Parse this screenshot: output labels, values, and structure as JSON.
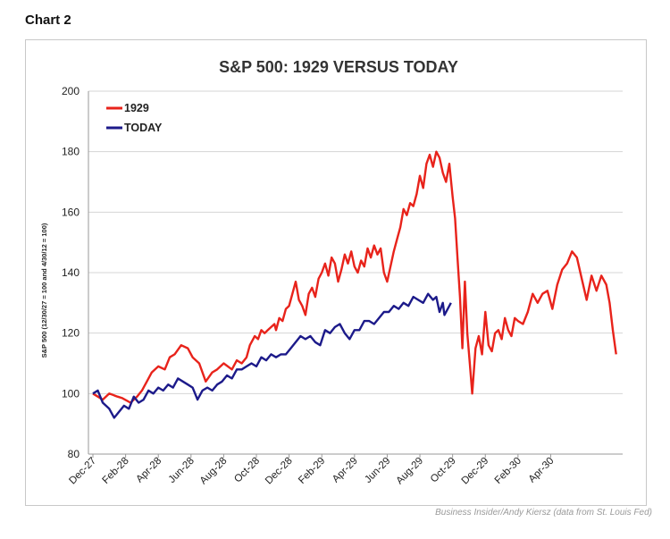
{
  "header": {
    "label": "Chart 2"
  },
  "source": "Business Insider/Andy Kiersz (data from St. Louis Fed)",
  "chart_data": {
    "type": "line",
    "title": "S&P 500: 1929 VERSUS TODAY",
    "ylabel": "S&P 500 (12/30/27 = 100 and 4/30/12 = 100)",
    "xlabel": "",
    "ylim": [
      80,
      200
    ],
    "yticks": [
      80,
      100,
      120,
      140,
      160,
      180,
      200
    ],
    "xticks": [
      "Dec-27",
      "Feb-28",
      "Apr-28",
      "Jun-28",
      "Aug-28",
      "Oct-28",
      "Dec-28",
      "Feb-29",
      "Apr-29",
      "Jun-29",
      "Aug-29",
      "Oct-29",
      "Dec-29",
      "Feb-30",
      "Apr-30"
    ],
    "grid": "horizontal",
    "legend": "top-left",
    "series": [
      {
        "name": "1929",
        "color": "#e8231b",
        "x": [
          0,
          0.3,
          0.6,
          1.0,
          1.5,
          1.8,
          2.3,
          2.7,
          3.0,
          3.3,
          3.6,
          4.0,
          4.4,
          4.7,
          5.0,
          5.4,
          5.8,
          6.1,
          6.5,
          6.9,
          7.3,
          7.6,
          8.0,
          8.5,
          8.8,
          9.1,
          9.4,
          9.6,
          9.9,
          10.1,
          10.3,
          10.5,
          10.7,
          10.9,
          11.1,
          11.2,
          11.4,
          11.6,
          11.8,
          12.0,
          12.2,
          12.4,
          12.6,
          12.8,
          13.0,
          13.2,
          13.4,
          13.6,
          13.8,
          14.0,
          14.2,
          14.4,
          14.6,
          14.8,
          15.0,
          15.2,
          15.4,
          15.6,
          15.8,
          16.0,
          16.2,
          16.4,
          16.6,
          16.8,
          17.0,
          17.2,
          17.4,
          17.6,
          17.8,
          18.0,
          18.2,
          18.4,
          18.6,
          18.8,
          19.0,
          19.2,
          19.4,
          19.6,
          19.8,
          20.0,
          20.2,
          20.4,
          20.6,
          20.8,
          21.0,
          21.2,
          21.4,
          21.6,
          21.8,
          22.0,
          22.15,
          22.3,
          22.45,
          22.6,
          22.75,
          22.9,
          23.05,
          23.2,
          23.4,
          23.6,
          23.8,
          24.0,
          24.2,
          24.4,
          24.6,
          24.8,
          25.0,
          25.2,
          25.4,
          25.6,
          25.8,
          26.0,
          26.3,
          26.6,
          26.9,
          27.2,
          27.5,
          27.8,
          28.1,
          28.4,
          28.7,
          29.0,
          29.3,
          29.6,
          29.9,
          30.2,
          30.5,
          30.8,
          31.1,
          31.4,
          31.6,
          31.8,
          32.0
        ],
        "values": [
          100,
          99,
          98,
          100,
          99,
          98.5,
          97,
          99,
          101,
          104,
          107,
          109,
          108,
          112,
          113,
          116,
          115,
          112,
          110,
          104,
          107,
          108,
          110,
          108,
          111,
          110,
          112,
          116,
          119,
          118,
          121,
          120,
          121,
          122,
          123,
          121,
          125,
          124,
          128,
          129,
          133,
          137,
          131,
          129,
          126,
          133,
          135,
          132,
          138,
          140,
          143,
          139,
          145,
          143,
          137,
          141,
          146,
          143,
          147,
          142,
          140,
          144,
          142,
          148,
          145,
          149,
          146,
          148,
          140,
          137,
          142,
          147,
          151,
          155,
          161,
          159,
          163,
          162,
          166,
          172,
          168,
          176,
          179,
          175,
          180,
          178,
          173,
          170,
          176,
          165,
          158,
          145,
          132,
          115,
          137,
          120,
          110,
          100,
          115,
          119,
          113,
          127,
          116,
          114,
          120,
          121,
          118,
          125,
          121,
          119,
          125,
          124,
          123,
          127,
          133,
          130,
          133,
          134,
          128,
          136,
          141,
          143,
          147,
          145,
          138,
          131,
          139,
          134,
          139,
          136,
          130,
          121,
          113
        ]
      },
      {
        "name": "TODAY",
        "color": "#1c1a8a",
        "x": [
          0,
          0.3,
          0.6,
          1.0,
          1.3,
          1.6,
          1.9,
          2.2,
          2.5,
          2.8,
          3.1,
          3.4,
          3.7,
          4.0,
          4.3,
          4.6,
          4.9,
          5.2,
          5.5,
          5.8,
          6.1,
          6.4,
          6.7,
          7.0,
          7.3,
          7.6,
          7.9,
          8.2,
          8.5,
          8.8,
          9.1,
          9.4,
          9.7,
          10.0,
          10.3,
          10.6,
          10.9,
          11.2,
          11.5,
          11.8,
          12.1,
          12.4,
          12.7,
          13.0,
          13.3,
          13.6,
          13.9,
          14.2,
          14.5,
          14.8,
          15.1,
          15.4,
          15.7,
          16.0,
          16.3,
          16.6,
          16.9,
          17.2,
          17.5,
          17.8,
          18.1,
          18.4,
          18.7,
          19.0,
          19.3,
          19.6,
          19.9,
          20.2,
          20.5,
          20.8,
          21.0,
          21.2,
          21.4,
          21.5,
          21.7,
          21.9
        ],
        "values": [
          100,
          101,
          97,
          95,
          92,
          94,
          96,
          95,
          99,
          97,
          98,
          101,
          100,
          102,
          101,
          103,
          102,
          105,
          104,
          103,
          102,
          98,
          101,
          102,
          101,
          103,
          104,
          106,
          105,
          108,
          108,
          109,
          110,
          109,
          112,
          111,
          113,
          112,
          113,
          113,
          115,
          117,
          119,
          118,
          119,
          117,
          116,
          121,
          120,
          122,
          123,
          120,
          118,
          121,
          121,
          124,
          124,
          123,
          125,
          127,
          127,
          129,
          128,
          130,
          129,
          132,
          131,
          130,
          133,
          131,
          132,
          127,
          130,
          126,
          128,
          130
        ]
      }
    ]
  }
}
